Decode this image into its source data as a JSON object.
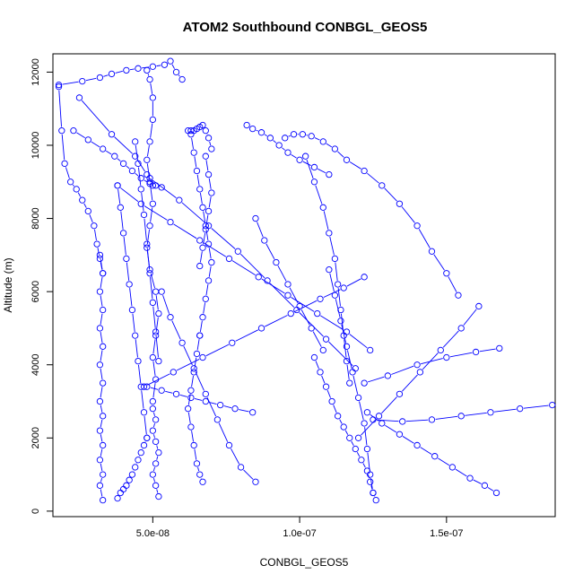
{
  "chart_data": {
    "type": "line",
    "title": "ATOM2 Southbound CONBGL_GEOS5",
    "xlabel": "CONBGL_GEOS5",
    "ylabel": "Altitude (m)",
    "xlim": [
      1.6e-08,
      1.87e-07
    ],
    "ylim": [
      -150,
      12500
    ],
    "x_ticks": [
      5e-08,
      1e-07,
      1.5e-07
    ],
    "x_tick_labels": [
      "5.0e-08",
      "1.0e-07",
      "1.5e-07"
    ],
    "y_ticks": [
      0,
      2000,
      4000,
      6000,
      8000,
      10000,
      12000
    ],
    "y_tick_labels": [
      "0",
      "2000",
      "4000",
      "6000",
      "8000",
      "10000",
      "12000"
    ],
    "color": "#0000ff",
    "marker": "open-circle",
    "grid": false,
    "series": [
      {
        "x": [
          4.8e-08,
          4.9e-08,
          5e-08,
          5e-08,
          4.9e-08,
          4.8e-08,
          4.9e-08,
          5e-08,
          4.9e-08,
          4.8e-08,
          4.9e-08,
          5.1e-08,
          5.2e-08,
          5.1e-08,
          5e-08,
          5.1e-08,
          5e-08
        ],
        "y": [
          12050,
          11800,
          11300,
          10700,
          10100,
          9600,
          9000,
          8400,
          7800,
          7200,
          6600,
          6000,
          5400,
          4800,
          4200,
          3600,
          3000
        ]
      },
      {
        "x": [
          5e-08,
          5.1e-08,
          5e-08,
          5.1e-08,
          5.2e-08,
          5.1e-08,
          5e-08,
          5.1e-08,
          5.2e-08
        ],
        "y": [
          2800,
          2500,
          2200,
          1900,
          1600,
          1300,
          1000,
          700,
          400
        ]
      },
      {
        "x": [
          3.2e-08,
          3.3e-08,
          3.2e-08,
          3.3e-08,
          3.2e-08,
          3.3e-08,
          3.2e-08,
          3.3e-08,
          3.2e-08,
          3.3e-08,
          3.2e-08,
          3.3e-08,
          3.2e-08,
          3.3e-08,
          3.2e-08,
          3.3e-08
        ],
        "y": [
          7000,
          6500,
          6000,
          5500,
          5000,
          4500,
          4000,
          3500,
          3000,
          2600,
          2200,
          1800,
          1400,
          1000,
          700,
          300
        ]
      },
      {
        "x": [
          1.8e-08,
          2.6e-08,
          3.2e-08,
          3.6e-08,
          4.1e-08,
          4.5e-08,
          5e-08,
          5.4e-08,
          5.6e-08,
          5.8e-08,
          6e-08
        ],
        "y": [
          11650,
          11750,
          11850,
          11950,
          12050,
          12100,
          12150,
          12200,
          12300,
          12000,
          11800
        ]
      },
      {
        "x": [
          1.8e-08,
          1.9e-08,
          2e-08,
          2.2e-08,
          2.4e-08,
          2.6e-08,
          2.8e-08,
          3e-08,
          3.1e-08,
          3.2e-08,
          3.3e-08
        ],
        "y": [
          11600,
          10400,
          9500,
          9000,
          8800,
          8500,
          8200,
          7800,
          7300,
          6900,
          6500
        ]
      },
      {
        "x": [
          2.5e-08,
          3.6e-08,
          4.4e-08,
          4.8e-08,
          5e-08
        ],
        "y": [
          11300,
          10300,
          9700,
          9200,
          8900
        ]
      },
      {
        "x": [
          2.3e-08,
          2.8e-08,
          3.3e-08,
          3.7e-08,
          4e-08,
          4.3e-08,
          4.6e-08,
          4.9e-08,
          5.1e-08,
          5.3e-08
        ],
        "y": [
          10400,
          10150,
          9900,
          9700,
          9500,
          9300,
          9100,
          8950,
          8900,
          8850
        ]
      },
      {
        "x": [
          3.8e-08,
          3.9e-08,
          4e-08,
          4.1e-08,
          4.2e-08,
          4.3e-08,
          4.4e-08,
          4.5e-08,
          4.6e-08,
          4.7e-08,
          4.8e-08
        ],
        "y": [
          8900,
          8300,
          7600,
          6900,
          6200,
          5500,
          4800,
          4100,
          3400,
          2700,
          2000
        ]
      },
      {
        "x": [
          4.8e-08,
          4.7e-08,
          4.6e-08,
          4.5e-08,
          4.4e-08,
          4.3e-08,
          4.2e-08,
          4.1e-08,
          4e-08,
          3.9e-08,
          3.8e-08
        ],
        "y": [
          2000,
          1800,
          1600,
          1400,
          1200,
          1000,
          850,
          700,
          600,
          500,
          350
        ]
      },
      {
        "x": [
          4.4e-08,
          4.5e-08,
          4.6e-08,
          4.7e-08,
          4.8e-08,
          4.9e-08,
          5e-08,
          5.1e-08,
          5.2e-08
        ],
        "y": [
          10100,
          9500,
          8800,
          8100,
          7300,
          6500,
          5700,
          4900,
          4100
        ]
      },
      {
        "x": [
          6.2e-08,
          6.3e-08,
          6.4e-08,
          6.5e-08,
          6.6e-08,
          6.7e-08,
          6.8e-08,
          6.9e-08,
          7e-08
        ],
        "y": [
          10400,
          10400,
          10400,
          10450,
          10500,
          10550,
          10400,
          10200,
          9900
        ]
      },
      {
        "x": [
          6.3e-08,
          6.4e-08,
          6.5e-08,
          6.6e-08,
          6.7e-08,
          6.8e-08,
          6.9e-08,
          7e-08,
          6.9e-08,
          6.8e-08,
          6.7e-08,
          6.6e-08
        ],
        "y": [
          10300,
          9800,
          9300,
          8800,
          8300,
          7800,
          7300,
          6800,
          6300,
          5800,
          5300,
          4800
        ]
      },
      {
        "x": [
          6.6e-08,
          6.5e-08,
          6.4e-08,
          6.3e-08,
          6.2e-08,
          6.3e-08,
          6.4e-08,
          6.5e-08,
          6.6e-08,
          6.7e-08
        ],
        "y": [
          4800,
          4300,
          3800,
          3300,
          2800,
          2300,
          1800,
          1300,
          1000,
          800
        ]
      },
      {
        "x": [
          6.8e-08,
          6.9e-08,
          7e-08,
          6.9e-08,
          6.8e-08,
          6.7e-08,
          6.6e-08
        ],
        "y": [
          9700,
          9200,
          8700,
          8200,
          7700,
          7200,
          6700
        ]
      },
      {
        "x": [
          5.3e-08,
          5.6e-08,
          6e-08,
          6.4e-08,
          6.8e-08,
          7.2e-08,
          7.6e-08,
          8e-08,
          8.5e-08
        ],
        "y": [
          6000,
          5300,
          4600,
          3900,
          3200,
          2500,
          1800,
          1200,
          800
        ]
      },
      {
        "x": [
          8.2e-08,
          8.4e-08,
          8.7e-08,
          9e-08,
          9.3e-08,
          9.6e-08,
          1e-07,
          1.05e-07,
          1.1e-07
        ],
        "y": [
          10550,
          10450,
          10350,
          10200,
          10000,
          9800,
          9600,
          9400,
          9200
        ]
      },
      {
        "x": [
          9.5e-08,
          9.8e-08,
          1.01e-07,
          1.04e-07,
          1.08e-07,
          1.12e-07,
          1.16e-07,
          1.22e-07,
          1.28e-07,
          1.34e-07,
          1.4e-07,
          1.45e-07,
          1.5e-07,
          1.54e-07
        ],
        "y": [
          10200,
          10300,
          10300,
          10250,
          10100,
          9900,
          9600,
          9300,
          8900,
          8400,
          7800,
          7100,
          6500,
          5900
        ]
      },
      {
        "x": [
          1.02e-07,
          1.05e-07,
          1.08e-07,
          1.1e-07,
          1.12e-07,
          1.13e-07,
          1.14e-07,
          1.15e-07,
          1.16e-07,
          1.17e-07
        ],
        "y": [
          9700,
          9000,
          8300,
          7600,
          6900,
          6200,
          5500,
          4800,
          4100,
          3500
        ]
      },
      {
        "x": [
          1.1e-07,
          1.12e-07,
          1.14e-07,
          1.16e-07,
          1.18e-07,
          1.2e-07,
          1.22e-07,
          1.23e-07,
          1.24e-07,
          1.25e-07
        ],
        "y": [
          6600,
          5900,
          5200,
          4500,
          3800,
          3100,
          2400,
          1700,
          1000,
          500
        ]
      },
      {
        "x": [
          8.5e-08,
          8.8e-08,
          9.2e-08,
          9.6e-08,
          1e-07,
          1.04e-07,
          1.08e-07
        ],
        "y": [
          8000,
          7400,
          6800,
          6200,
          5600,
          5000,
          4400
        ]
      },
      {
        "x": [
          1.05e-07,
          1.07e-07,
          1.09e-07,
          1.11e-07,
          1.13e-07,
          1.15e-07,
          1.17e-07,
          1.19e-07,
          1.21e-07,
          1.23e-07,
          1.24e-07,
          1.25e-07,
          1.26e-07
        ],
        "y": [
          4200,
          3800,
          3400,
          3000,
          2600,
          2300,
          2000,
          1700,
          1400,
          1100,
          800,
          500,
          300
        ]
      },
      {
        "x": [
          1.23e-07,
          1.28e-07,
          1.34e-07,
          1.4e-07,
          1.46e-07,
          1.52e-07,
          1.58e-07,
          1.63e-07,
          1.67e-07
        ],
        "y": [
          2700,
          2400,
          2100,
          1800,
          1500,
          1200,
          900,
          700,
          500
        ]
      },
      {
        "x": [
          1.22e-07,
          1.3e-07,
          1.4e-07,
          1.5e-07,
          1.6e-07,
          1.68e-07
        ],
        "y": [
          3500,
          3700,
          4000,
          4200,
          4350,
          4450
        ]
      },
      {
        "x": [
          1.25e-07,
          1.35e-07,
          1.45e-07,
          1.55e-07,
          1.65e-07,
          1.75e-07,
          1.86e-07
        ],
        "y": [
          2500,
          2450,
          2500,
          2600,
          2700,
          2800,
          2900
        ]
      },
      {
        "x": [
          1.2e-07,
          1.27e-07,
          1.34e-07,
          1.41e-07,
          1.48e-07,
          1.55e-07,
          1.61e-07
        ],
        "y": [
          2000,
          2600,
          3200,
          3800,
          4400,
          5000,
          5600
        ]
      },
      {
        "x": [
          3.8e-08,
          4.6e-08,
          5.6e-08,
          6.6e-08,
          7.6e-08,
          8.6e-08,
          9.6e-08,
          1.06e-07,
          1.16e-07,
          1.24e-07
        ],
        "y": [
          8900,
          8400,
          7900,
          7400,
          6900,
          6400,
          5900,
          5400,
          4900,
          4400
        ]
      },
      {
        "x": [
          4.7e-08,
          5.7e-08,
          6.7e-08,
          7.7e-08,
          8.7e-08,
          9.7e-08,
          1.07e-07,
          1.15e-07,
          1.22e-07
        ],
        "y": [
          3400,
          3800,
          4200,
          4600,
          5000,
          5400,
          5800,
          6100,
          6400
        ]
      },
      {
        "x": [
          4.9e-08,
          5.9e-08,
          6.9e-08,
          7.9e-08,
          8.9e-08,
          9.9e-08,
          1.09e-07,
          1.19e-07
        ],
        "y": [
          9100,
          8500,
          7800,
          7100,
          6300,
          5500,
          4700,
          3900
        ]
      },
      {
        "x": [
          4.8e-08,
          5.3e-08,
          5.8e-08,
          6.3e-08,
          6.8e-08,
          7.3e-08,
          7.8e-08,
          8.4e-08
        ],
        "y": [
          3400,
          3300,
          3200,
          3100,
          3000,
          2900,
          2800,
          2700
        ]
      }
    ]
  }
}
